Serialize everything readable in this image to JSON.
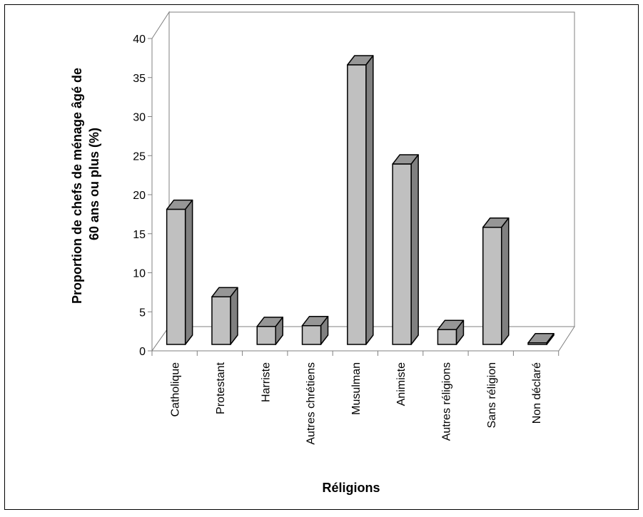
{
  "chart_data": {
    "type": "bar",
    "title": "",
    "xlabel": "Réligions",
    "ylabel_lines": [
      "Proportion de chefs de ménage âgé de",
      "60 ans ou plus (%)"
    ],
    "categories": [
      "Catholique",
      "Protestant",
      "Harriste",
      "Autres chrétiens",
      "Musulman",
      "Animiste",
      "Autres réligions",
      "Sans réligion",
      "Non déclaré"
    ],
    "values": [
      17.3,
      6.1,
      2.3,
      2.4,
      35.8,
      23.1,
      1.9,
      15.0,
      0.2
    ],
    "ylim": [
      0,
      40
    ],
    "yticks": [
      "0",
      "5",
      "10",
      "15",
      "20",
      "25",
      "30",
      "35",
      "40"
    ],
    "grid": false,
    "three_d": true,
    "colors": {
      "bar_front": "#c0c0c0",
      "bar_top": "#969696",
      "bar_side": "#808080",
      "wall": "#ffffff",
      "outline": "#000000",
      "axis": "#808080"
    }
  }
}
